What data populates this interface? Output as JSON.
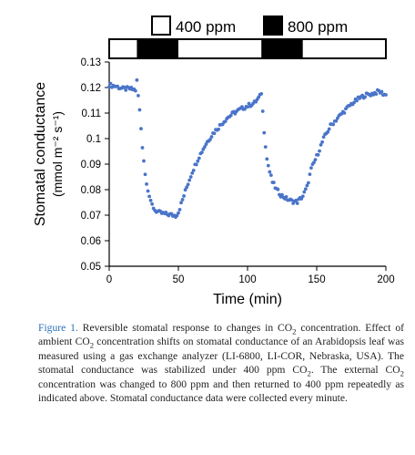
{
  "legend": [
    {
      "label": "400 ppm",
      "fill": "#ffffff"
    },
    {
      "label": "800 ppm",
      "fill": "#000000"
    }
  ],
  "colors": {
    "points": "#4a74c9",
    "bar_off": "#ffffff",
    "bar_on": "#000000"
  },
  "chart_data": {
    "type": "scatter",
    "xlabel": "Time (min)",
    "ylabel_line1": "Stomatal conductance",
    "ylabel_line2": "(mmol m⁻² s⁻¹)",
    "xlim": [
      0,
      200
    ],
    "ylim": [
      0.05,
      0.13
    ],
    "xticks": [
      0,
      50,
      100,
      150,
      200
    ],
    "yticks": [
      0.05,
      0.06,
      0.07,
      0.08,
      0.09,
      0.1,
      0.11,
      0.12,
      0.13
    ],
    "ytick_labels": [
      "0.05",
      "0.06",
      "0.07",
      "0.08",
      "0.09",
      "0.1",
      "0.11",
      "0.12",
      "0.13"
    ],
    "co2_bar": [
      {
        "start": 0,
        "end": 20,
        "co2": "400 ppm"
      },
      {
        "start": 20,
        "end": 50,
        "co2": "800 ppm"
      },
      {
        "start": 50,
        "end": 110,
        "co2": "400 ppm"
      },
      {
        "start": 110,
        "end": 140,
        "co2": "800 ppm"
      },
      {
        "start": 140,
        "end": 200,
        "co2": "400 ppm"
      }
    ],
    "key_points": {
      "x": [
        0,
        5,
        10,
        15,
        19,
        20,
        22,
        24,
        26,
        28,
        30,
        33,
        36,
        40,
        44,
        48,
        50,
        53,
        56,
        60,
        65,
        70,
        75,
        80,
        85,
        90,
        95,
        100,
        105,
        109,
        110,
        112,
        114,
        116,
        118,
        121,
        124,
        128,
        132,
        136,
        140,
        143,
        146,
        150,
        155,
        160,
        165,
        170,
        175,
        180,
        185,
        190,
        195,
        200
      ],
      "y": [
        0.121,
        0.1205,
        0.1195,
        0.1195,
        0.119,
        0.1225,
        0.111,
        0.097,
        0.086,
        0.08,
        0.075,
        0.072,
        0.071,
        0.0705,
        0.0702,
        0.0698,
        0.0712,
        0.076,
        0.081,
        0.087,
        0.093,
        0.098,
        0.102,
        0.105,
        0.108,
        0.11,
        0.1115,
        0.1128,
        0.114,
        0.1165,
        0.118,
        0.103,
        0.092,
        0.087,
        0.083,
        0.08,
        0.078,
        0.0765,
        0.0755,
        0.0752,
        0.0775,
        0.081,
        0.088,
        0.093,
        0.1,
        0.105,
        0.108,
        0.1108,
        0.1135,
        0.1155,
        0.117,
        0.1175,
        0.1185,
        0.117
      ]
    }
  },
  "caption": {
    "figure_label": "Figure 1.",
    "parts": [
      " Reversible stomatal response to changes in CO",
      "2",
      " concentration. Effect of ambient CO",
      "2",
      " concentration shifts on stomatal conductance of an Arabidopsis leaf was measured using a gas exchange analyzer (LI-6800, LI-COR, Nebraska, USA). The stomatal conductance was stabilized under 400 ppm CO",
      "2",
      ". The external CO",
      "2",
      " concentration was changed to 800 ppm and then returned to 400 ppm repeatedly as indicated above. Stomatal conductance data were collected every minute."
    ]
  }
}
